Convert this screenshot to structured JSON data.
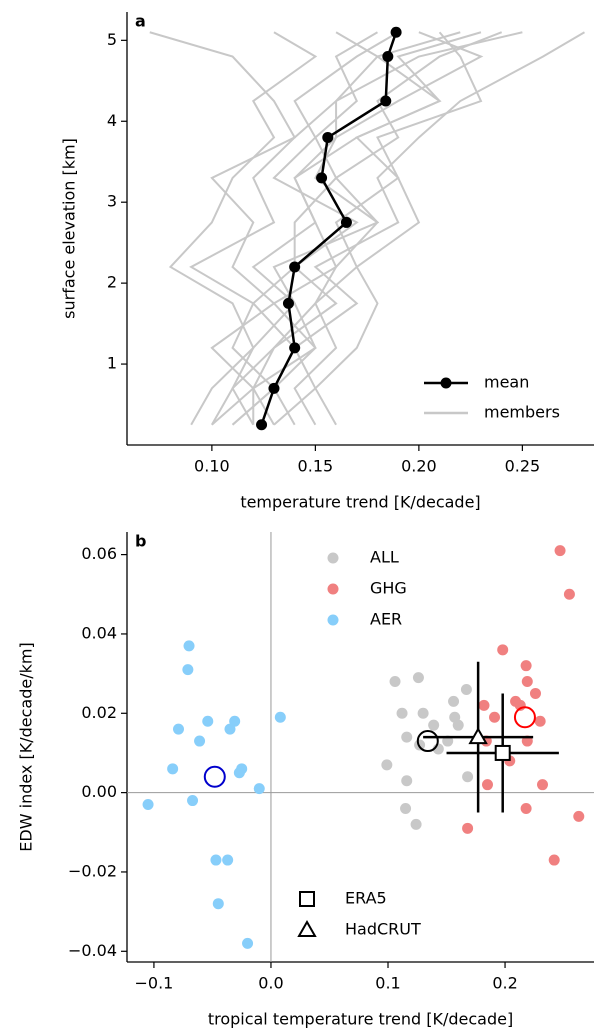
{
  "chart_data": [
    {
      "type": "line",
      "label": "a",
      "xlabel": "temperature trend [K/decade]",
      "ylabel": "surface elevation [km]",
      "elevations": [
        0.25,
        0.7,
        1.2,
        1.75,
        2.2,
        2.75,
        3.3,
        3.8,
        4.25,
        4.8,
        5.1
      ],
      "series": [
        {
          "name": "mean",
          "color": "#000000",
          "values": [
            0.124,
            0.13,
            0.14,
            0.137,
            0.14,
            0.165,
            0.153,
            0.156,
            0.184,
            0.185,
            0.189
          ]
        },
        {
          "name": "members",
          "color": "#c8c8c8",
          "members": [
            [
              0.1,
              0.11,
              0.12,
              0.14,
              0.12,
              0.15,
              0.14,
              0.17,
              0.21,
              0.18,
              0.22
            ],
            [
              0.12,
              0.12,
              0.15,
              0.13,
              0.16,
              0.18,
              0.15,
              0.16,
              0.19,
              0.23,
              0.2
            ],
            [
              0.11,
              0.13,
              0.11,
              0.12,
              0.09,
              0.13,
              0.12,
              0.14,
              0.16,
              0.2,
              0.25
            ],
            [
              0.13,
              0.15,
              0.14,
              0.17,
              0.15,
              0.19,
              0.18,
              0.2,
              0.22,
              0.26,
              0.28
            ],
            [
              0.15,
              0.14,
              0.16,
              0.15,
              0.17,
              0.16,
              0.19,
              0.17,
              0.21,
              0.19,
              0.23
            ],
            [
              0.09,
              0.1,
              0.12,
              0.11,
              0.08,
              0.1,
              0.11,
              0.13,
              0.12,
              0.15,
              0.13
            ],
            [
              0.12,
              0.11,
              0.13,
              0.16,
              0.14,
              0.17,
              0.13,
              0.15,
              0.17,
              0.16,
              0.18
            ],
            [
              0.14,
              0.13,
              0.15,
              0.14,
              0.13,
              0.18,
              0.16,
              0.15,
              0.14,
              0.17,
              0.19
            ],
            [
              0.1,
              0.12,
              0.1,
              0.13,
              0.11,
              0.12,
              0.1,
              0.14,
              0.13,
              0.11,
              0.07
            ],
            [
              0.16,
              0.15,
              0.17,
              0.18,
              0.17,
              0.2,
              0.19,
              0.18,
              0.23,
              0.22,
              0.21
            ],
            [
              0.11,
              0.13,
              0.14,
              0.12,
              0.14,
              0.14,
              0.16,
              0.19,
              0.18,
              0.21,
              0.24
            ],
            [
              0.13,
              0.12,
              0.13,
              0.15,
              0.16,
              0.15,
              0.14,
              0.16,
              0.16,
              0.18,
              0.16
            ]
          ]
        }
      ],
      "xlim": [
        0.059,
        0.2846
      ],
      "ylim": [
        0,
        5.35
      ],
      "xticks": [
        {
          "value": 0.1,
          "label": "0.10"
        },
        {
          "value": 0.15,
          "label": "0.15"
        },
        {
          "value": 0.2,
          "label": "0.20"
        },
        {
          "value": 0.25,
          "label": "0.25"
        }
      ],
      "yticks": [
        1,
        2,
        3,
        4,
        5
      ],
      "legend": "lower right"
    },
    {
      "type": "scatter",
      "label": "b",
      "xlabel": "tropical temperature trend [K/decade]",
      "ylabel": "EDW index [K/decade/km]",
      "series": [
        {
          "name": "ALL",
          "color": "#c8c8c8",
          "mean_color": "#000000",
          "mean_x": 0.134,
          "mean_y": 0.013,
          "x": [
            0.106,
            0.126,
            0.112,
            0.13,
            0.116,
            0.139,
            0.127,
            0.156,
            0.167,
            0.157,
            0.16,
            0.099,
            0.116,
            0.115,
            0.124,
            0.168,
            0.151,
            0.143
          ],
          "y": [
            0.028,
            0.029,
            0.02,
            0.02,
            0.014,
            0.017,
            0.012,
            0.023,
            0.026,
            0.019,
            0.017,
            0.007,
            0.003,
            -0.004,
            -0.008,
            0.004,
            0.013,
            0.011
          ]
        },
        {
          "name": "GHG",
          "color": "#f08080",
          "mean_color": "#ff0000",
          "mean_x": 0.217,
          "mean_y": 0.019,
          "x": [
            0.247,
            0.255,
            0.198,
            0.218,
            0.219,
            0.226,
            0.209,
            0.213,
            0.182,
            0.191,
            0.23,
            0.184,
            0.219,
            0.204,
            0.232,
            0.185,
            0.218,
            0.168,
            0.263,
            0.242
          ],
          "y": [
            0.061,
            0.05,
            0.036,
            0.032,
            0.028,
            0.025,
            0.023,
            0.022,
            0.022,
            0.019,
            0.018,
            0.013,
            0.013,
            0.008,
            0.002,
            0.002,
            -0.004,
            -0.009,
            -0.006,
            -0.017
          ]
        },
        {
          "name": "AER",
          "color": "#87cefa",
          "mean_color": "#0000cc",
          "mean_x": -0.048,
          "mean_y": 0.004,
          "x": [
            -0.07,
            -0.071,
            -0.054,
            -0.031,
            0.008,
            -0.079,
            -0.061,
            -0.035,
            -0.084,
            -0.025,
            -0.027,
            -0.01,
            -0.105,
            -0.067,
            -0.047,
            -0.037,
            -0.045,
            -0.02
          ],
          "y": [
            0.037,
            0.031,
            0.018,
            0.018,
            0.019,
            0.016,
            0.013,
            0.016,
            0.006,
            0.006,
            0.005,
            0.001,
            -0.003,
            -0.002,
            -0.017,
            -0.017,
            -0.028,
            -0.038
          ]
        }
      ],
      "observations": [
        {
          "name": "ERA5",
          "marker": "square",
          "x": 0.198,
          "y": 0.01,
          "xerr": 0.048,
          "yerr": 0.015
        },
        {
          "name": "HadCRUT",
          "marker": "triangle",
          "x": 0.177,
          "y": 0.014,
          "xerr": 0.047,
          "yerr": 0.019
        }
      ],
      "xlim": [
        -0.123,
        0.276
      ],
      "ylim": [
        -0.0427,
        0.0657
      ],
      "xticks": [
        {
          "value": -0.1,
          "label": "−0.1"
        },
        {
          "value": 0.0,
          "label": "0.0"
        },
        {
          "value": 0.1,
          "label": "0.1"
        },
        {
          "value": 0.2,
          "label": "0.2"
        }
      ],
      "yticks": [
        {
          "value": -0.04,
          "label": "−0.04"
        },
        {
          "value": -0.02,
          "label": "−0.02"
        },
        {
          "value": 0.0,
          "label": "0.00"
        },
        {
          "value": 0.02,
          "label": "0.02"
        },
        {
          "value": 0.04,
          "label": "0.04"
        },
        {
          "value": 0.06,
          "label": "0.06"
        }
      ],
      "zero_lines": true
    }
  ]
}
